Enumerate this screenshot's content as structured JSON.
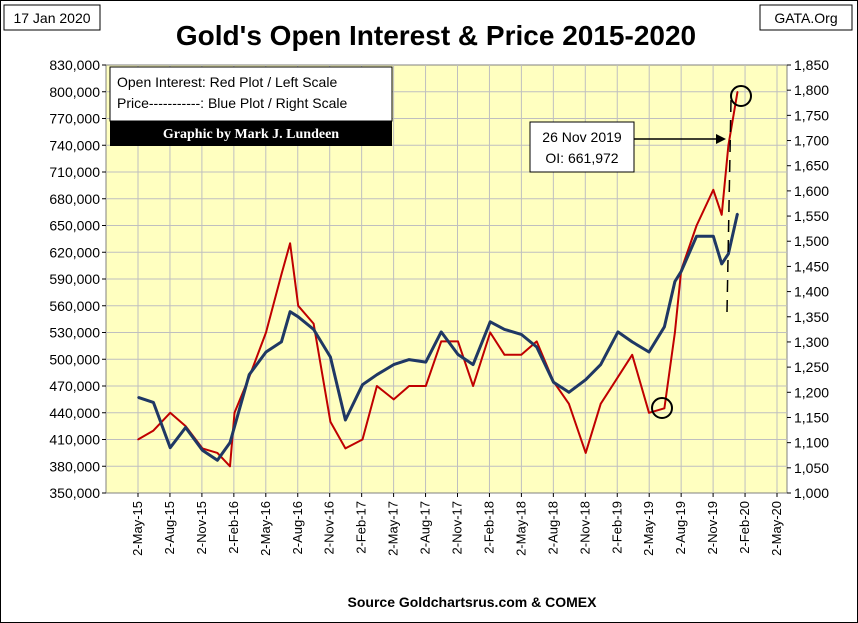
{
  "page": {
    "date_stamp": "17 Jan 2020",
    "source_tag": "GATA.Org",
    "source_footer": "Source Goldchartsrus.com & COMEX"
  },
  "legend": {
    "line1": "Open Interest:  Red Plot / Left Scale",
    "line2": "Price-----------: Blue Plot / Right Scale",
    "credit": "Graphic by Mark J. Lundeen"
  },
  "annotation": {
    "line1": "26 Nov 2019",
    "line2": "OI: 661,972"
  },
  "colors": {
    "open_interest": "#C00000",
    "price": "#1F3864",
    "plot_background": "#FFFFC0",
    "grid": "#BFBFBF",
    "credit_box": "#000000"
  },
  "chart_data": {
    "type": "line",
    "title": "Gold's Open Interest & Price 2015-2020",
    "ylim_left": [
      350000,
      830000
    ],
    "ylim_right": [
      1000,
      1850
    ],
    "yticks_left": [
      "830,000",
      "800,000",
      "770,000",
      "740,000",
      "710,000",
      "680,000",
      "650,000",
      "620,000",
      "590,000",
      "560,000",
      "530,000",
      "500,000",
      "470,000",
      "440,000",
      "410,000",
      "380,000",
      "350,000"
    ],
    "yticks_right": [
      "1,850",
      "1,800",
      "1,750",
      "1,700",
      "1,650",
      "1,600",
      "1,550",
      "1,500",
      "1,450",
      "1,400",
      "1,350",
      "1,300",
      "1,250",
      "1,200",
      "1,150",
      "1,100",
      "1,050",
      "1,000"
    ],
    "xticks": [
      "2-May-15",
      "2-Aug-15",
      "2-Nov-15",
      "2-Feb-16",
      "2-May-16",
      "2-Aug-16",
      "2-Nov-16",
      "2-Feb-17",
      "2-May-17",
      "2-Aug-17",
      "2-Nov-17",
      "2-Feb-18",
      "2-May-18",
      "2-Aug-18",
      "2-Nov-18",
      "2-Feb-19",
      "2-May-19",
      "2-Aug-19",
      "2-Nov-19",
      "2-Feb-20",
      "2-May-20"
    ],
    "grid": true,
    "series": [
      {
        "name": "Open Interest",
        "axis": "left",
        "x": [
          "2015-05-02",
          "2015-06-15",
          "2015-08-02",
          "2015-09-15",
          "2015-11-02",
          "2015-12-15",
          "2016-01-20",
          "2016-02-02",
          "2016-03-15",
          "2016-05-02",
          "2016-06-15",
          "2016-07-10",
          "2016-08-02",
          "2016-09-15",
          "2016-11-02",
          "2016-12-15",
          "2017-02-02",
          "2017-03-15",
          "2017-05-02",
          "2017-06-15",
          "2017-08-02",
          "2017-09-15",
          "2017-11-02",
          "2017-12-15",
          "2018-02-02",
          "2018-03-15",
          "2018-05-02",
          "2018-06-15",
          "2018-08-02",
          "2018-09-15",
          "2018-11-02",
          "2018-12-15",
          "2019-02-02",
          "2019-03-15",
          "2019-05-02",
          "2019-06-15",
          "2019-07-15",
          "2019-08-02",
          "2019-09-15",
          "2019-11-02",
          "2019-11-26",
          "2019-12-15",
          "2020-01-10"
        ],
        "values": [
          410000,
          420000,
          440000,
          425000,
          400000,
          395000,
          380000,
          440000,
          480000,
          530000,
          595000,
          630000,
          560000,
          540000,
          430000,
          400000,
          410000,
          470000,
          455000,
          470000,
          470000,
          520000,
          520000,
          470000,
          530000,
          505000,
          505000,
          520000,
          475000,
          450000,
          395000,
          450000,
          480000,
          505000,
          440000,
          445000,
          530000,
          600000,
          650000,
          690000,
          661972,
          740000,
          800000
        ]
      },
      {
        "name": "Price",
        "axis": "right",
        "x": [
          "2015-05-02",
          "2015-06-15",
          "2015-08-02",
          "2015-09-15",
          "2015-11-02",
          "2015-12-15",
          "2016-01-20",
          "2016-03-15",
          "2016-05-02",
          "2016-06-15",
          "2016-07-10",
          "2016-08-02",
          "2016-09-15",
          "2016-11-02",
          "2016-12-15",
          "2017-02-02",
          "2017-03-15",
          "2017-05-02",
          "2017-06-15",
          "2017-08-02",
          "2017-09-15",
          "2017-11-02",
          "2017-12-15",
          "2018-02-02",
          "2018-03-15",
          "2018-05-02",
          "2018-06-15",
          "2018-08-02",
          "2018-09-15",
          "2018-11-02",
          "2018-12-15",
          "2019-02-02",
          "2019-03-15",
          "2019-05-02",
          "2019-06-15",
          "2019-07-15",
          "2019-08-02",
          "2019-09-15",
          "2019-11-02",
          "2019-11-26",
          "2019-12-15",
          "2020-01-10"
        ],
        "values": [
          1190,
          1180,
          1090,
          1130,
          1085,
          1065,
          1100,
          1235,
          1280,
          1300,
          1360,
          1350,
          1325,
          1270,
          1145,
          1215,
          1235,
          1255,
          1265,
          1260,
          1320,
          1275,
          1255,
          1340,
          1325,
          1315,
          1290,
          1220,
          1200,
          1225,
          1255,
          1320,
          1300,
          1280,
          1330,
          1420,
          1440,
          1510,
          1510,
          1455,
          1475,
          1555
        ]
      }
    ]
  }
}
